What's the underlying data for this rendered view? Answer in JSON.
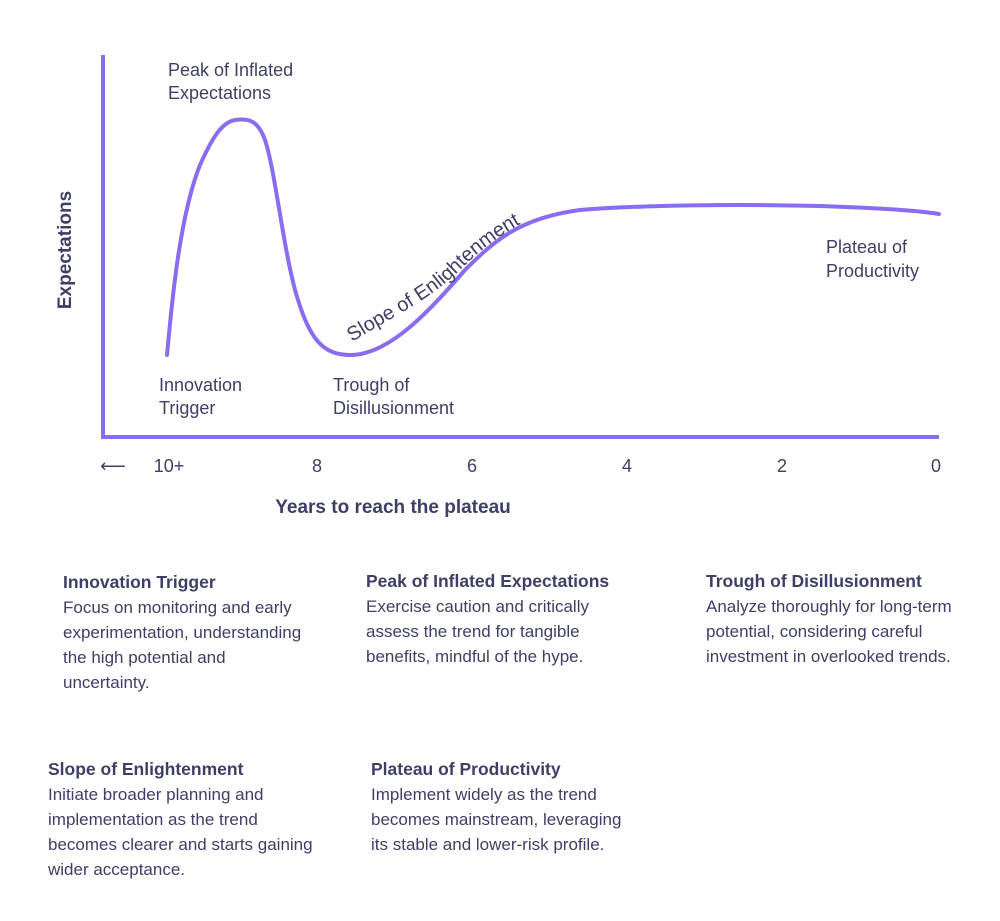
{
  "colors": {
    "curve": "#8a6cf0",
    "axis": "#8a6cf0",
    "text": "#3d3f66"
  },
  "chart": {
    "y_axis_title": "Expectations",
    "x_axis_title": "Years to reach the plateau",
    "x_arrow": "⟵",
    "x_ticks": [
      "10+",
      "8",
      "6",
      "4",
      "2",
      "0"
    ],
    "curve_label": "Slope of Enlightenment",
    "phase_labels": {
      "peak_line1": "Peak of Inflated",
      "peak_line2": "Expectations",
      "trigger_line1": "Innovation",
      "trigger_line2": "Trigger",
      "trough_line1": "Trough of",
      "trough_line2": "Disillusionment",
      "plateau_line1": "Plateau of",
      "plateau_line2": "Productivity"
    }
  },
  "descriptions": [
    {
      "title": "Innovation Trigger",
      "body": "Focus on monitoring and early experimentation, understanding the high potential and uncertainty."
    },
    {
      "title": "Peak of Inflated Expectations",
      "body": "Exercise caution and critically assess the trend for tangible benefits, mindful of the hype."
    },
    {
      "title": "Trough of Disillusionment",
      "body": "Analyze thoroughly for long-term potential, considering careful investment in overlooked trends."
    },
    {
      "title": "Slope of Enlightenment",
      "body": "Initiate broader planning and implementation as the trend becomes clearer and starts gaining wider acceptance."
    },
    {
      "title": "Plateau of Productivity",
      "body": "Implement widely as the trend becomes mainstream, leveraging its stable and lower-risk profile."
    }
  ]
}
